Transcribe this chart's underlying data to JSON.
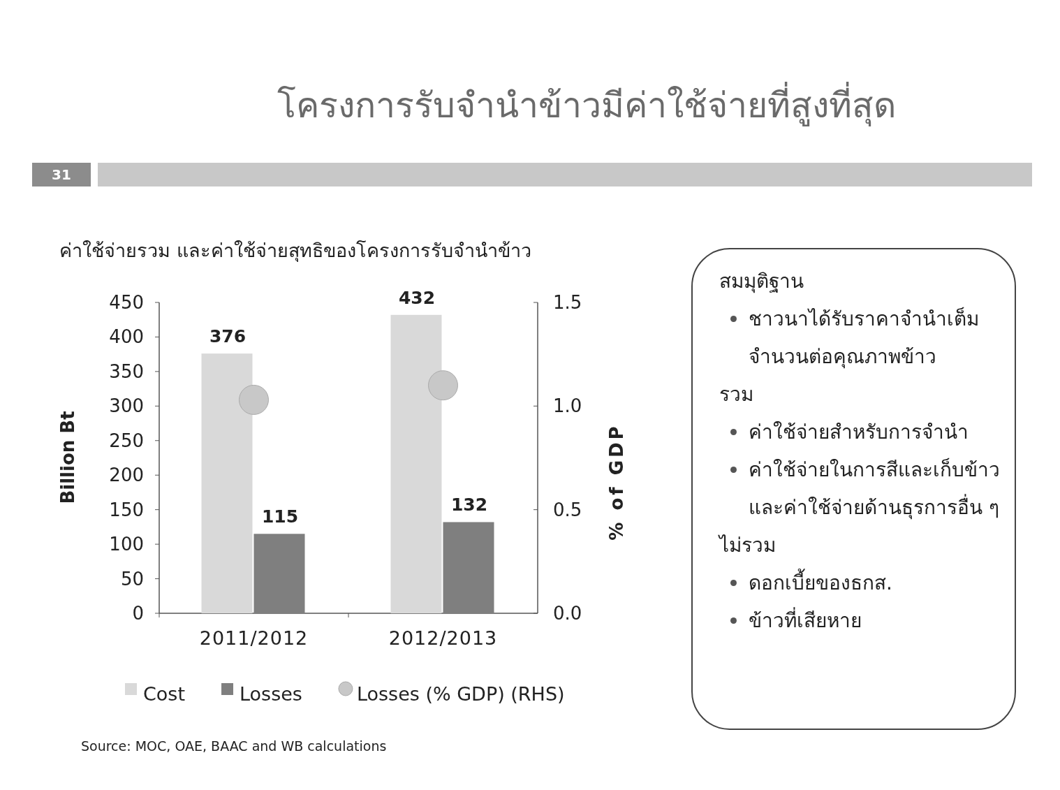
{
  "chart_data": [
    {
      "type": "bar",
      "title": "โครงการรับจำนำข้าวมีค่าใช้จ่ายที่สูงที่สุด",
      "subtitle": "ค่าใช้จ่ายรวม และค่าใช้จ่ายสุทธิของโครงการรับจำนำข้าว",
      "ylabel": "Billion Bt",
      "y2label": "% of GDP",
      "categories": [
        "2011/2012",
        "2012/2013"
      ],
      "series": [
        {
          "name": "Cost",
          "color": "#d9d9d9",
          "values": [
            376,
            432
          ],
          "value_labels": [
            "376",
            "432"
          ]
        },
        {
          "name": "Losses",
          "color": "#7f7f7f",
          "values": [
            115,
            132
          ],
          "value_labels": [
            "115",
            "132"
          ]
        },
        {
          "name": "Losses (% GDP) (RHS)",
          "type": "scatter",
          "axis": "y2",
          "marker": "circle",
          "color": "#c8c8c8",
          "values": [
            1.03,
            1.1
          ]
        }
      ],
      "ylim": [
        0,
        450
      ],
      "yticks": [
        0,
        50,
        100,
        150,
        200,
        250,
        300,
        350,
        400,
        450
      ],
      "y2lim": [
        0,
        1.5
      ],
      "y2ticks": [
        {
          "value": 0,
          "label": "0.0"
        },
        {
          "value": 0.5,
          "label": "0.5"
        },
        {
          "value": 1,
          "label": "1.0"
        },
        {
          "value": 1.5,
          "label": "1.5"
        }
      ],
      "legend": "bottom",
      "annotations": [
        "31",
        "Source:  MOC, OAE, BAAC and WB calculations"
      ]
    },
    {
      "type": "other",
      "title": "สมมุติฐาน",
      "annotations": [
        "ชาวนาได้รับราคาจำนำเต็มจำนวนต่อคุณภาพข้าว"
      ]
    },
    {
      "type": "other",
      "title": "รวม",
      "annotations": [
        "ค่าใช้จ่ายสำหรับการจำนำ",
        "ค่าใช้จ่ายในการสีและเก็บข้าว และค่าใช้จ่ายด้านธุรการอื่น ๆ"
      ]
    },
    {
      "type": "other",
      "title": "ไม่รวม",
      "annotations": [
        "ดอกเบี้ยของธกส.",
        "ข้าวที่เสียหาย"
      ]
    }
  ]
}
